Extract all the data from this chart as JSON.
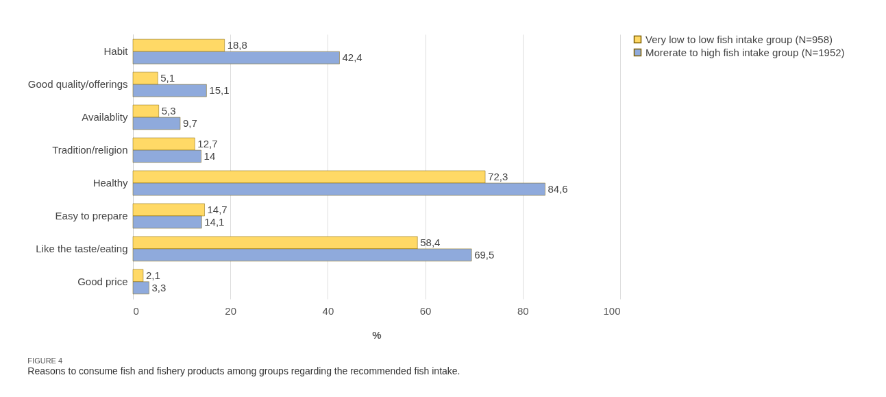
{
  "chart_data": {
    "type": "bar",
    "orientation": "horizontal",
    "xlabel": "%",
    "categories": [
      "Habit",
      "Good quality/offerings",
      "Availablity",
      "Tradition/religion",
      "Healthy",
      "Easy to prepare",
      "Like the taste/eating",
      "Good price"
    ],
    "series": [
      {
        "name": "Very low to low fish intake group (N=958)",
        "color": "#ffd966",
        "values": [
          18.8,
          5.1,
          5.3,
          12.7,
          72.3,
          14.7,
          58.4,
          2.1
        ],
        "value_labels": [
          "18,8",
          "5,1",
          "5,3",
          "12,7",
          "72,3",
          "14,7",
          "58,4",
          "2,1"
        ]
      },
      {
        "name": "Morerate to high fish intake group (N=1952)",
        "color": "#8faadc",
        "values": [
          42.4,
          15.1,
          9.7,
          14,
          84.6,
          14.1,
          69.5,
          3.3
        ],
        "value_labels": [
          "42,4",
          "15,1",
          "9,7",
          "14",
          "84,6",
          "14,1",
          "69,5",
          "3,3"
        ]
      }
    ],
    "xlim": [
      0,
      100
    ],
    "xticks": [
      0,
      20,
      40,
      60,
      80,
      100
    ],
    "grid": "x",
    "legend": "right",
    "annotations": [
      "FIGURE 4",
      "Reasons to consume fish and fishery products among groups regarding the recommended fish intake."
    ]
  }
}
